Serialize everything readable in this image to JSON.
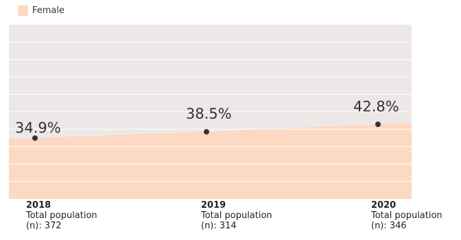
{
  "legend": {
    "label": "Female",
    "color": "#fdd8c2"
  },
  "colors": {
    "background": "#ede7e7",
    "area": "#fdd8c2",
    "gridline": "#ffffff",
    "marker": "#333333"
  },
  "chart_data": {
    "type": "area",
    "categories": [
      "2018",
      "2019",
      "2020"
    ],
    "series": [
      {
        "name": "Female",
        "values": [
          34.9,
          38.5,
          42.8
        ],
        "labels": [
          "34.9%",
          "38.5%",
          "42.8%"
        ]
      }
    ],
    "subtitles": [
      "Total population (n): 372",
      "Total population (n): 314",
      "Total population (n): 346"
    ],
    "grid": true,
    "legend_position": "top-left",
    "ylim": [
      0,
      100
    ]
  },
  "categories": [
    {
      "year": "2018",
      "line1": "Total population",
      "line2": "(n): 372"
    },
    {
      "year": "2019",
      "line1": "Total population",
      "line2": "(n): 314"
    },
    {
      "year": "2020",
      "line1": "Total population",
      "line2": "(n): 346"
    }
  ]
}
